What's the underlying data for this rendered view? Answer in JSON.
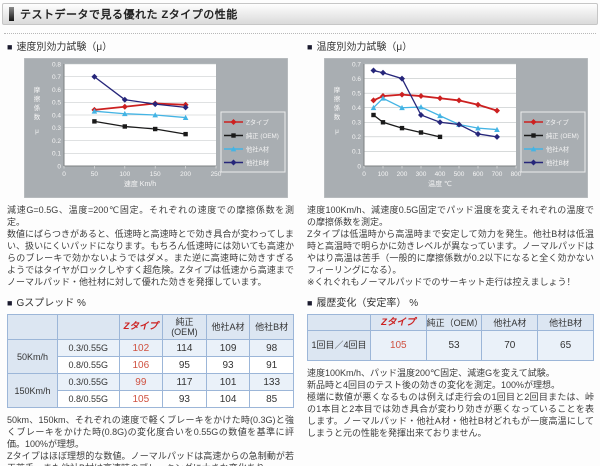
{
  "ui": {
    "bullet": "■"
  },
  "header": {
    "title": "テストデータで見る優れた Zタイプの性能"
  },
  "left": {
    "section1_title": "速度別効力試験（μ）",
    "desc1": "減速G=0.5G、温度=200℃固定。それぞれの速度での摩擦係数を測定。\n数値にばらつきがあると、低速時と高速時とで効き具合が変わってしまい、扱いにくいパッドになります。もちろん低速時には効いても高速からのブレーキで効かないようではダメ。また逆に高速時に効きすぎるようではタイヤがロックしやすく超危険。Zタイプは低速から高速までノーマルパッド・他社材に対して優れた効きを発揮しています。",
    "section2_title": "Gスプレッド %",
    "desc2": "50km、150km、それぞれの速度で軽くブレーキをかけた時(0.3G)と強くブレーキをかけた時(0.8G)の変化度合いを0.55Gの数値を基準に評価。100%が理想。\nZタイプはほぼ理想的な数値。ノーマルパッドは高速からの急制動が若干苦手。また他社B材は高速時のブレーキングに大きな変化あり。"
  },
  "right": {
    "section1_title": "温度別効力試験（μ）",
    "desc1": "速度100Km/h、減速度0.5G固定でパッド温度を変えそれぞれの温度での摩擦係数を測定。\nZタイプは低温時から高温時まで安定して効力を発生。他社B材は低温時と高温時で明らかに効きレベルが異なっています。ノーマルパッドはやはり高温は苦手（一般的に摩擦係数が0.2以下になると全く効かないフィーリングになる）。\n※くれぐれもノーマルパッドでのサーキット走行は控えましょう！",
    "section2_title": "履歴変化（安定率） %",
    "desc2": "速度100Km/h、パッド温度200℃固定、減速Gを変えて試験。\n新品時と4回目のテスト後の効きの変化を測定。100%が理想。\n極端に数値が悪くなるものは例えば走行会の1回目と2回目または、峠の1本目と2本目では効き具合が変わり効きが悪くなっていることを表します。ノーマルパッド・他社A材・他社B材どれもが一度高温にしてしまうと元の性能を発揮出来ておりません。"
  },
  "gspread_table": {
    "header": [
      "",
      "",
      "Zタイプ",
      "純正\n(OEM)",
      "他社A材",
      "他社B材"
    ],
    "row_groups": [
      {
        "label": "50Km/h",
        "rows": [
          [
            "0.3/0.55G",
            102,
            114,
            109,
            98
          ],
          [
            "0.8/0.55G",
            106,
            95,
            93,
            91
          ]
        ]
      },
      {
        "label": "150Km/h",
        "rows": [
          [
            "0.3/0.55G",
            99,
            117,
            101,
            133
          ],
          [
            "0.8/0.55G",
            105,
            93,
            104,
            85
          ]
        ]
      }
    ]
  },
  "history_table": {
    "header": [
      "",
      "Zタイプ",
      "純正（OEM）",
      "他社A材",
      "他社B材"
    ],
    "rows": [
      [
        "1回目／4回目",
        105,
        53,
        70,
        65
      ]
    ]
  },
  "chart_data": [
    {
      "id": "speed",
      "type": "line",
      "title": "速度別効力試験（μ）",
      "xlabel": "速度 Km/h",
      "ylabel": "摩擦係数 μ",
      "xlim": [
        0,
        250
      ],
      "ylim": [
        0,
        0.8
      ],
      "xticks": [
        0,
        50,
        100,
        150,
        200,
        250
      ],
      "yticks": [
        0,
        0.1,
        0.2,
        0.3,
        0.4,
        0.5,
        0.6,
        0.7,
        0.8
      ],
      "grid": "horizontal",
      "legend_position": "right",
      "panel_color": "#a9aeb2",
      "plot_color": "#ffffff",
      "series": [
        {
          "name": "Zタイプ",
          "color": "#cc2020",
          "x": [
            50,
            100,
            150,
            200
          ],
          "values": [
            0.44,
            0.465,
            0.49,
            0.48
          ]
        },
        {
          "name": "純正 (OEM)",
          "color": "#1a1a1a",
          "x": [
            50,
            100,
            150,
            200
          ],
          "values": [
            0.35,
            0.31,
            0.29,
            0.25
          ]
        },
        {
          "name": "他社A材",
          "color": "#44b4e4",
          "x": [
            50,
            100,
            150,
            200
          ],
          "values": [
            0.43,
            0.41,
            0.4,
            0.38
          ]
        },
        {
          "name": "他社B材",
          "color": "#26267a",
          "x": [
            50,
            100,
            150,
            200
          ],
          "values": [
            0.7,
            0.52,
            0.485,
            0.46
          ]
        }
      ]
    },
    {
      "id": "temperature",
      "type": "line",
      "title": "温度別効力試験（μ）",
      "xlabel": "温度 ℃",
      "ylabel": "摩擦係数 μ",
      "xlim": [
        0,
        800
      ],
      "ylim": [
        0,
        0.7
      ],
      "xticks": [
        0,
        100,
        200,
        300,
        400,
        500,
        600,
        700,
        800
      ],
      "yticks": [
        0,
        0.1,
        0.2,
        0.3,
        0.4,
        0.5,
        0.6,
        0.7
      ],
      "grid": "horizontal",
      "legend_position": "right",
      "panel_color": "#a9aeb2",
      "plot_color": "#ffffff",
      "series": [
        {
          "name": "Zタイプ",
          "color": "#cc2020",
          "x": [
            50,
            100,
            200,
            300,
            400,
            500,
            600,
            700
          ],
          "values": [
            0.45,
            0.48,
            0.49,
            0.48,
            0.465,
            0.45,
            0.42,
            0.38
          ]
        },
        {
          "name": "純正 (OEM)",
          "color": "#1a1a1a",
          "x": [
            50,
            100,
            200,
            300,
            400
          ],
          "values": [
            0.35,
            0.3,
            0.26,
            0.23,
            0.2
          ]
        },
        {
          "name": "他社A材",
          "color": "#44b4e4",
          "x": [
            50,
            100,
            200,
            300,
            400,
            500,
            600,
            700
          ],
          "values": [
            0.4,
            0.465,
            0.4,
            0.405,
            0.345,
            0.285,
            0.26,
            0.25
          ]
        },
        {
          "name": "他社B材",
          "color": "#26267a",
          "x": [
            50,
            100,
            200,
            300,
            400,
            500,
            600,
            700
          ],
          "values": [
            0.655,
            0.64,
            0.6,
            0.35,
            0.3,
            0.285,
            0.22,
            0.2
          ]
        }
      ]
    }
  ]
}
